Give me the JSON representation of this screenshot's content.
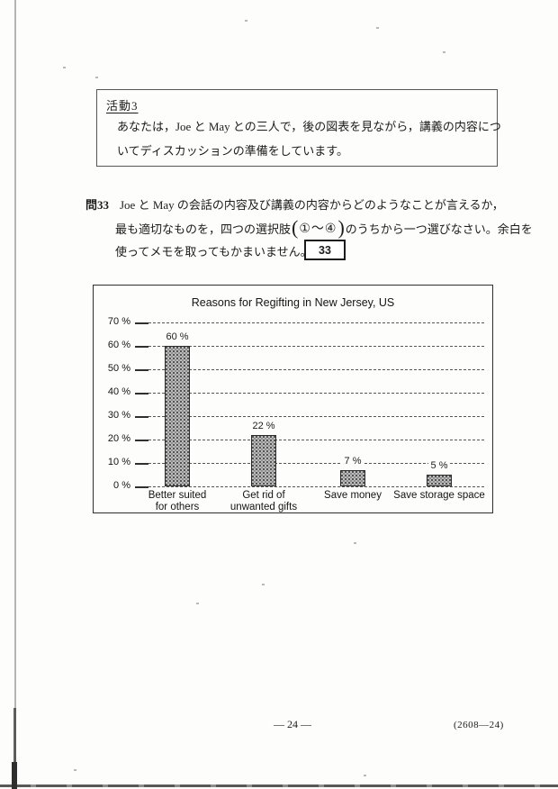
{
  "page": {
    "footer_page_number": "— 24 —",
    "footer_code": "(2608—24)"
  },
  "activity": {
    "heading": "活動3",
    "line1": "あなたは，Joe と May との三人で，後の図表を見ながら，講義の内容につ",
    "line2": "いてディスカッションの準備をしています。"
  },
  "question": {
    "label": "問33",
    "line1": "Joe と May の会話の内容及び講義の内容からどのようなことが言えるか，",
    "line2_pre": "最も適切なものを，四つの選択肢",
    "paren_open": "(",
    "choices": "①～④",
    "paren_close": ")",
    "line2_post": "のうちから一つ選びなさい。余白を",
    "line3": "使ってメモを取ってもかまいません。",
    "answer_number": "33"
  },
  "chart_data": {
    "type": "bar",
    "title": "Reasons for Regifting in New Jersey, US",
    "categories": [
      "Better suited\nfor others",
      "Get rid of\nunwanted gifts",
      "Save money",
      "Save storage space"
    ],
    "values": [
      60,
      22,
      7,
      5
    ],
    "value_labels": [
      "60 %",
      "22 %",
      "7 %",
      "5 %"
    ],
    "y_ticks": [
      "70 %",
      "60 %",
      "50 %",
      "40 %",
      "30 %",
      "20 %",
      "10 %",
      "0 %"
    ],
    "y_tick_values": [
      70,
      60,
      50,
      40,
      30,
      20,
      10,
      0
    ],
    "ylim": [
      0,
      70
    ],
    "xlabel": "",
    "ylabel": "",
    "grid": "horizontal-dashed",
    "legend": "none",
    "bar_fill": "#bdbdbd",
    "bar_border": "#2b2b2b"
  }
}
